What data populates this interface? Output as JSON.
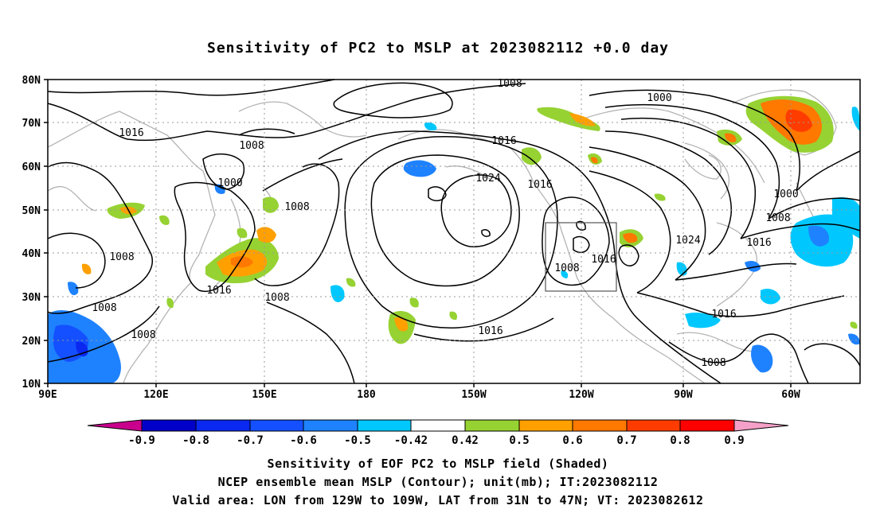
{
  "title": "Sensitivity of PC2 to MSLP at 2023082112 +0.0 day",
  "map": {
    "lon_range": [
      "90E",
      "30W"
    ],
    "lat_range": [
      "10N",
      "80N"
    ],
    "lat_ticks": [
      "80N",
      "70N",
      "60N",
      "50N",
      "40N",
      "30N",
      "20N",
      "10N"
    ],
    "lon_ticks": [
      "90E",
      "120E",
      "150E",
      "180",
      "150W",
      "120W",
      "90W",
      "60W"
    ],
    "grid": true,
    "box": {
      "lon": [
        "129W",
        "109W"
      ],
      "lat": [
        "31N",
        "47N"
      ]
    },
    "contour_labels": [
      {
        "text": "1008",
        "id": "c1"
      },
      {
        "text": "1016",
        "id": "c2"
      },
      {
        "text": "1008",
        "id": "c3"
      },
      {
        "text": "1000",
        "id": "c4"
      },
      {
        "text": "1008",
        "id": "c5"
      },
      {
        "text": "1016",
        "id": "c6"
      },
      {
        "text": "1024",
        "id": "c7"
      },
      {
        "text": "1016",
        "id": "c8"
      },
      {
        "text": "1000",
        "id": "c9"
      },
      {
        "text": "1000",
        "id": "c10"
      },
      {
        "text": "1008",
        "id": "c11"
      },
      {
        "text": "1024",
        "id": "c12"
      },
      {
        "text": "1016",
        "id": "c13"
      },
      {
        "text": "1016",
        "id": "c14"
      },
      {
        "text": "1008",
        "id": "c15"
      },
      {
        "text": "1008",
        "id": "c16"
      },
      {
        "text": "1008",
        "id": "c17"
      },
      {
        "text": "1016",
        "id": "c18"
      },
      {
        "text": "1008",
        "id": "c19"
      },
      {
        "text": "1008",
        "id": "c20"
      },
      {
        "text": "1016",
        "id": "c21"
      },
      {
        "text": "1016",
        "id": "c22"
      },
      {
        "text": "1008",
        "id": "c23"
      }
    ]
  },
  "colorbar": {
    "labels": [
      "-0.9",
      "-0.8",
      "-0.7",
      "-0.6",
      "-0.5",
      "-0.42",
      "0.42",
      "0.5",
      "0.6",
      "0.7",
      "0.8",
      "0.9"
    ],
    "colors": [
      "#c8008c",
      "#0000c8",
      "#0a28f0",
      "#1450ff",
      "#1e82ff",
      "#00c8ff",
      "#ffffff",
      "#96d232",
      "#ffa000",
      "#ff7800",
      "#ff3c00",
      "#ff0000",
      "#f5a0c8"
    ]
  },
  "captions": [
    "Sensitivity of EOF PC2 to MSLP field (Shaded)",
    "NCEP ensemble mean MSLP (Contour); unit(mb); IT:2023082112",
    "Valid area: LON from 129W to 109W, LAT from 31N to 47N; VT: 2023082612"
  ]
}
